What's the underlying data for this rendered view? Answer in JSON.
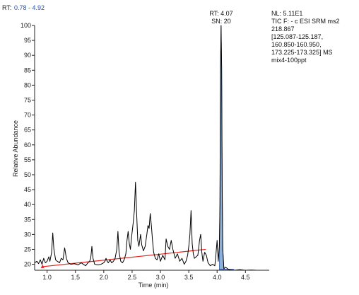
{
  "rt_range": {
    "label": "RT:",
    "value": "0.78 - 4.92"
  },
  "info_lines": [
    "NL: 5.11E1",
    "TIC F: - c ESI SRM ms2",
    "218.867",
    "[125.087-125.187,",
    "160.850-160.950,",
    "173.225-173.325]  MS",
    "mix4-100ppt"
  ],
  "colors": {
    "trace": "#000000",
    "baseline": "#e8201c",
    "peak_fill": "#8fb0d4",
    "peak_edge": "#3a63b5",
    "rt_value": "#2a4fa8"
  },
  "chart_data": {
    "type": "line",
    "xlabel": "Time (min)",
    "ylabel": "Relative Abundance",
    "xlim": [
      0.78,
      4.92
    ],
    "ylim": [
      18,
      100
    ],
    "x_ticks": [
      1.0,
      1.5,
      2.0,
      2.5,
      3.0,
      3.5,
      4.0,
      4.5
    ],
    "y_ticks": [
      20,
      25,
      30,
      35,
      40,
      45,
      50,
      55,
      60,
      65,
      70,
      75,
      80,
      85,
      90,
      95,
      100
    ],
    "series": [
      {
        "values": [
          [
            0.78,
            20.5
          ],
          [
            0.82,
            21
          ],
          [
            0.85,
            20.2
          ],
          [
            0.88,
            21.5
          ],
          [
            0.91,
            20
          ],
          [
            0.94,
            22
          ],
          [
            0.97,
            20.5
          ],
          [
            1.0,
            21
          ],
          [
            1.03,
            22.5
          ],
          [
            1.05,
            21
          ],
          [
            1.08,
            24
          ],
          [
            1.1,
            30.5
          ],
          [
            1.12,
            25
          ],
          [
            1.15,
            21.5
          ],
          [
            1.18,
            21
          ],
          [
            1.22,
            20.5
          ],
          [
            1.25,
            22
          ],
          [
            1.28,
            21.5
          ],
          [
            1.31,
            25.5
          ],
          [
            1.34,
            22
          ],
          [
            1.37,
            20.5
          ],
          [
            1.42,
            20
          ],
          [
            1.48,
            20.2
          ],
          [
            1.55,
            19.8
          ],
          [
            1.6,
            20.5
          ],
          [
            1.64,
            20
          ],
          [
            1.68,
            19.5
          ],
          [
            1.72,
            20.5
          ],
          [
            1.75,
            21
          ],
          [
            1.77,
            22
          ],
          [
            1.79,
            26
          ],
          [
            1.81,
            22
          ],
          [
            1.84,
            20
          ],
          [
            1.9,
            19.8
          ],
          [
            1.95,
            20
          ],
          [
            2.0,
            20.5
          ],
          [
            2.02,
            21
          ],
          [
            2.04,
            22
          ],
          [
            2.06,
            21
          ],
          [
            2.08,
            20.5
          ],
          [
            2.11,
            21.5
          ],
          [
            2.14,
            20.5
          ],
          [
            2.17,
            21
          ],
          [
            2.2,
            22
          ],
          [
            2.23,
            25
          ],
          [
            2.25,
            31
          ],
          [
            2.27,
            24
          ],
          [
            2.3,
            21
          ],
          [
            2.33,
            20.5
          ],
          [
            2.36,
            21.5
          ],
          [
            2.39,
            23.5
          ],
          [
            2.41,
            28
          ],
          [
            2.43,
            31
          ],
          [
            2.45,
            27
          ],
          [
            2.47,
            25
          ],
          [
            2.49,
            29
          ],
          [
            2.52,
            34
          ],
          [
            2.54,
            38
          ],
          [
            2.56,
            47.5
          ],
          [
            2.58,
            37
          ],
          [
            2.6,
            28
          ],
          [
            2.62,
            26
          ],
          [
            2.65,
            30
          ],
          [
            2.67,
            26.5
          ],
          [
            2.7,
            24.5
          ],
          [
            2.73,
            26
          ],
          [
            2.76,
            30
          ],
          [
            2.78,
            33
          ],
          [
            2.8,
            32
          ],
          [
            2.82,
            37
          ],
          [
            2.84,
            33
          ],
          [
            2.86,
            28
          ],
          [
            2.88,
            24
          ],
          [
            2.91,
            22
          ],
          [
            2.94,
            21.5
          ],
          [
            2.97,
            23.5
          ],
          [
            3.0,
            21
          ],
          [
            3.04,
            23
          ],
          [
            3.08,
            21.5
          ],
          [
            3.1,
            28.5
          ],
          [
            3.13,
            26
          ],
          [
            3.16,
            25
          ],
          [
            3.19,
            28
          ],
          [
            3.22,
            25
          ],
          [
            3.26,
            22
          ],
          [
            3.3,
            23.5
          ],
          [
            3.34,
            21
          ],
          [
            3.38,
            22
          ],
          [
            3.42,
            20
          ],
          [
            3.45,
            21
          ],
          [
            3.48,
            23
          ],
          [
            3.5,
            26
          ],
          [
            3.52,
            30
          ],
          [
            3.54,
            38
          ],
          [
            3.56,
            27
          ],
          [
            3.58,
            23.5
          ],
          [
            3.6,
            22
          ],
          [
            3.63,
            22.5
          ],
          [
            3.66,
            23
          ],
          [
            3.69,
            28
          ],
          [
            3.71,
            30
          ],
          [
            3.73,
            24
          ],
          [
            3.75,
            21
          ],
          [
            3.78,
            24
          ],
          [
            3.81,
            23
          ],
          [
            3.84,
            20.5
          ],
          [
            3.88,
            19.5
          ],
          [
            3.92,
            20
          ],
          [
            3.96,
            19.5
          ],
          [
            3.98,
            23.5
          ],
          [
            4.0,
            28
          ],
          [
            4.02,
            21
          ],
          [
            4.04,
            26
          ],
          [
            4.05,
            40
          ],
          [
            4.06,
            85
          ],
          [
            4.07,
            100
          ],
          [
            4.08,
            86
          ],
          [
            4.09,
            45
          ],
          [
            4.1,
            25
          ],
          [
            4.12,
            18.5
          ],
          [
            4.15,
            19
          ],
          [
            4.2,
            18.3
          ],
          [
            4.3,
            18
          ],
          [
            4.4,
            18.2
          ],
          [
            4.5,
            18
          ],
          [
            4.6,
            18.1
          ],
          [
            4.7,
            18
          ],
          [
            4.8,
            18
          ],
          [
            4.92,
            18
          ]
        ]
      }
    ],
    "baseline_line": {
      "x": [
        0.92,
        3.8
      ],
      "y": [
        19.2,
        25.0
      ]
    },
    "peak_area": {
      "x_start": 4.04,
      "x_end": 4.12,
      "apex_rt": 4.07
    },
    "baseline_marker_x": 0.92,
    "peak_annotation": {
      "rt": "RT: 4.07",
      "sn": "SN: 20",
      "x": 4.07,
      "y": 100
    }
  }
}
